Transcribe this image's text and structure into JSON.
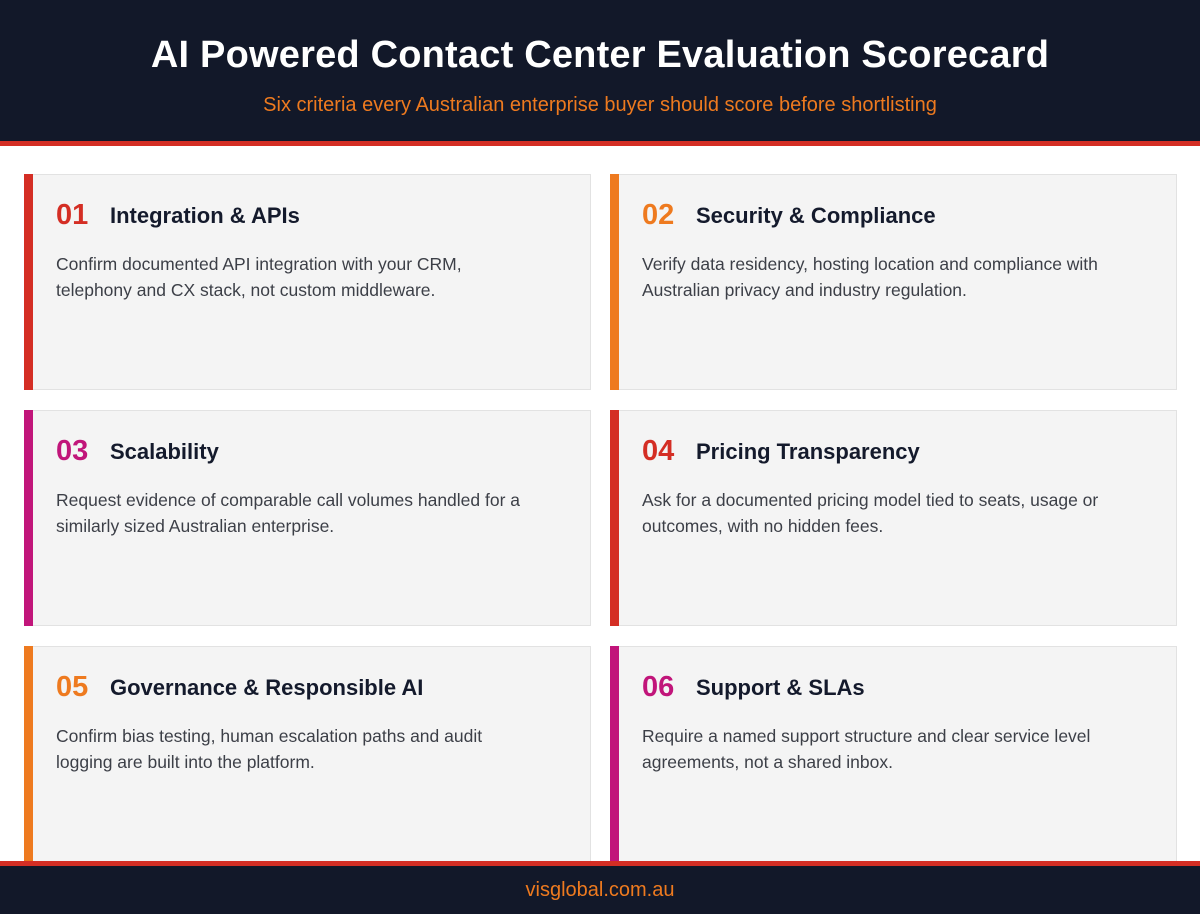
{
  "header": {
    "title": "AI Powered Contact Center Evaluation Scorecard",
    "subtitle": "Six criteria every Australian enterprise buyer should score before shortlisting"
  },
  "colors": {
    "navy": "#121829",
    "red": "#d42e24",
    "orange": "#ee7a1f",
    "magenta": "#c1157a"
  },
  "cards": [
    {
      "number": "01",
      "title": "Integration & APIs",
      "description": "Confirm documented API integration with your CRM, telephony and CX stack, not custom middleware.",
      "accent": "#d42e24"
    },
    {
      "number": "02",
      "title": "Security & Compliance",
      "description": "Verify data residency, hosting location and compliance with Australian privacy and industry regulation.",
      "accent": "#ee7a1f"
    },
    {
      "number": "03",
      "title": "Scalability",
      "description": "Request evidence of comparable call volumes handled for a similarly sized Australian enterprise.",
      "accent": "#c1157a"
    },
    {
      "number": "04",
      "title": "Pricing Transparency",
      "description": "Ask for a documented pricing model tied to seats, usage or outcomes, with no hidden fees.",
      "accent": "#d42e24"
    },
    {
      "number": "05",
      "title": "Governance & Responsible AI",
      "description": "Confirm bias testing, human escalation paths and audit logging are built into the platform.",
      "accent": "#ee7a1f"
    },
    {
      "number": "06",
      "title": "Support & SLAs",
      "description": "Require a named support structure and clear service level agreements, not a shared inbox.",
      "accent": "#c1157a"
    }
  ],
  "footer": {
    "website": "visglobal.com.au"
  }
}
